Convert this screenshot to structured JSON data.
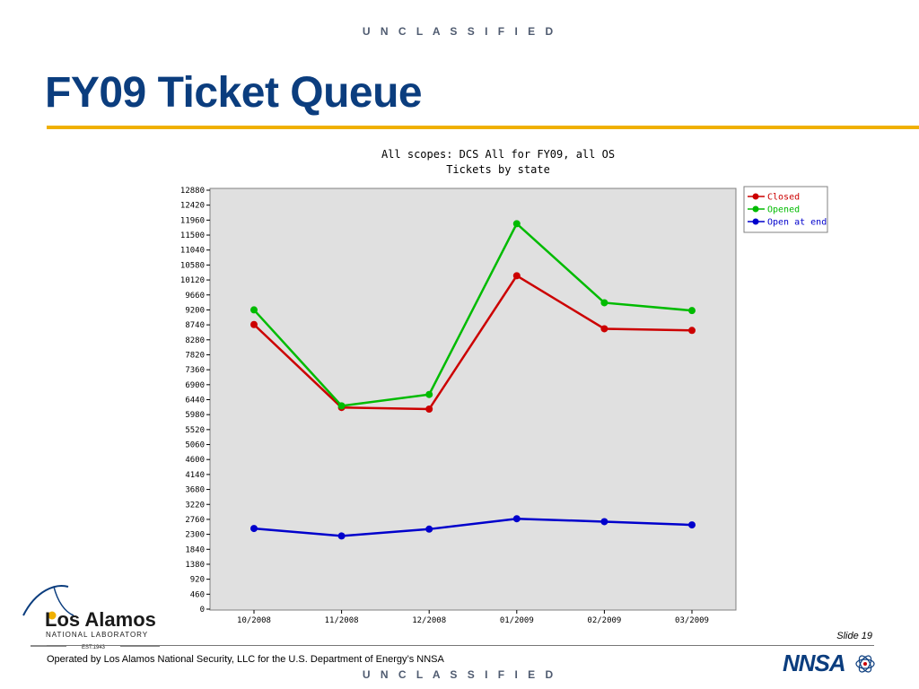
{
  "classification": "U N C L A S S I F I E D",
  "slide": {
    "title": "FY09 Ticket Queue",
    "number": "Slide 19",
    "footer": "Operated by Los Alamos National Security, LLC for the U.S. Department of Energy’s NNSA"
  },
  "logos": {
    "lanl_name": "Los Alamos",
    "lanl_sub": "NATIONAL LABORATORY",
    "lanl_est": "EST.1943",
    "nnsa": "NNSA"
  },
  "colors": {
    "title": "#0b3d7e",
    "rule": "#f0b000",
    "closed": "#cc0000",
    "opened": "#00bb00",
    "open_at_end": "#0000cc",
    "plot_bg": "#e0e0e0"
  },
  "chart_data": {
    "type": "line",
    "title": "All scopes: DCS All for FY09, all OS",
    "subtitle": "Tickets by state",
    "xlabel": "",
    "ylabel": "",
    "categories": [
      "10/2008",
      "11/2008",
      "12/2008",
      "01/2009",
      "02/2009",
      "03/2009"
    ],
    "ylim": [
      0,
      12880
    ],
    "yticks": [
      0,
      460,
      920,
      1380,
      1840,
      2300,
      2760,
      3220,
      3680,
      4140,
      4600,
      5060,
      5520,
      5980,
      6440,
      6900,
      7360,
      7820,
      8280,
      8740,
      9200,
      9660,
      10120,
      10580,
      11040,
      11500,
      11960,
      12420,
      12880
    ],
    "grid": false,
    "legend": "top-right",
    "series": [
      {
        "name": "Closed",
        "color": "#cc0000",
        "values": [
          8750,
          6200,
          6150,
          10250,
          8620,
          8570
        ]
      },
      {
        "name": "Opened",
        "color": "#00bb00",
        "values": [
          9200,
          6250,
          6600,
          11850,
          9420,
          9180
        ]
      },
      {
        "name": "Open at end",
        "color": "#0000cc",
        "values": [
          2480,
          2250,
          2460,
          2780,
          2690,
          2590
        ]
      }
    ]
  }
}
